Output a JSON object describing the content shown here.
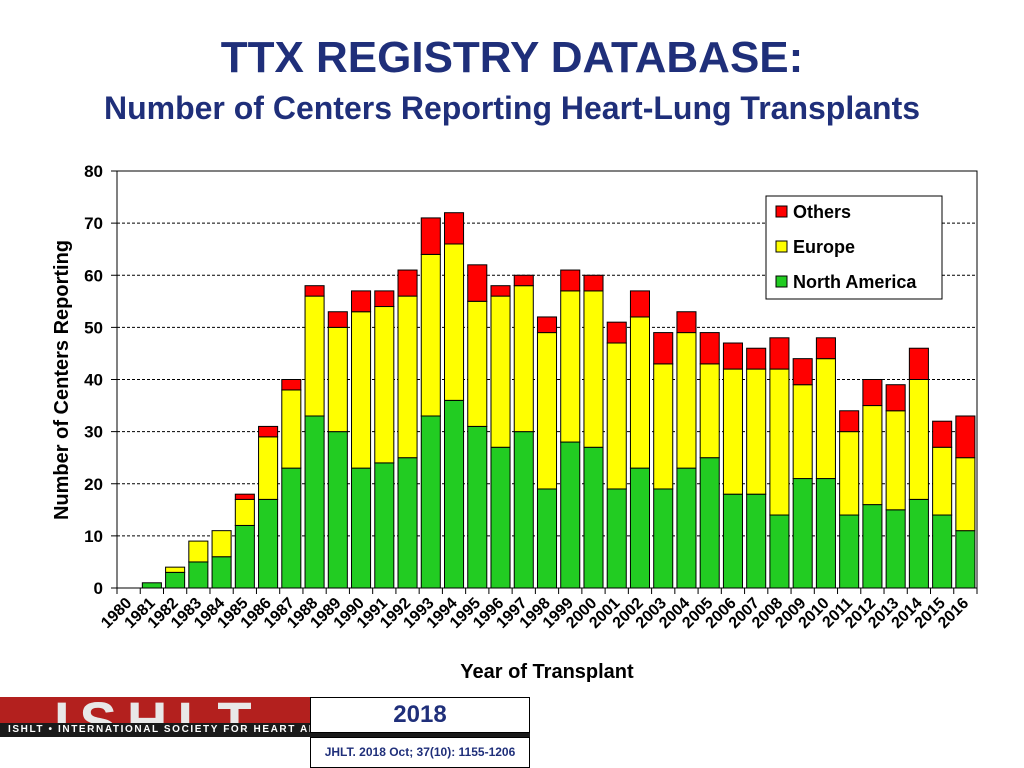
{
  "header": {
    "title": "TTX REGISTRY DATABASE:",
    "subtitle": "Number of Centers Reporting Heart-Lung Transplants"
  },
  "colors": {
    "north_america": "#22cc22",
    "europe": "#ffff00",
    "others": "#ff0000",
    "title": "#1f2f7a",
    "logo_red": "#b3201e"
  },
  "chart_data": {
    "type": "bar",
    "stacked": true,
    "title": "",
    "xlabel": "Year of Transplant",
    "ylabel": "Number of Centers Reporting",
    "ylim": [
      0,
      80
    ],
    "yticks": [
      0,
      10,
      20,
      30,
      40,
      50,
      60,
      70,
      80
    ],
    "grid": true,
    "legend_position": "top-right",
    "legend_order": [
      "Others",
      "Europe",
      "North America"
    ],
    "categories": [
      "1980",
      "1981",
      "1982",
      "1983",
      "1984",
      "1985",
      "1986",
      "1987",
      "1988",
      "1989",
      "1990",
      "1991",
      "1992",
      "1993",
      "1994",
      "1995",
      "1996",
      "1997",
      "1998",
      "1999",
      "2000",
      "2001",
      "2002",
      "2003",
      "2004",
      "2005",
      "2006",
      "2007",
      "2008",
      "2009",
      "2010",
      "2011",
      "2012",
      "2013",
      "2014",
      "2015",
      "2016"
    ],
    "series": [
      {
        "name": "North America",
        "color": "#22cc22",
        "values": [
          0,
          1,
          3,
          5,
          6,
          12,
          17,
          23,
          33,
          30,
          23,
          24,
          25,
          33,
          36,
          31,
          27,
          30,
          19,
          28,
          27,
          19,
          23,
          19,
          23,
          25,
          18,
          18,
          14,
          21,
          21,
          14,
          16,
          15,
          17,
          14,
          11
        ]
      },
      {
        "name": "Europe",
        "color": "#ffff00",
        "values": [
          0,
          0,
          1,
          4,
          5,
          5,
          12,
          15,
          23,
          20,
          30,
          30,
          31,
          31,
          30,
          24,
          29,
          28,
          30,
          29,
          30,
          28,
          29,
          24,
          26,
          18,
          24,
          24,
          28,
          18,
          23,
          16,
          19,
          19,
          23,
          13,
          14
        ]
      },
      {
        "name": "Others",
        "color": "#ff0000",
        "values": [
          0,
          0,
          0,
          0,
          0,
          1,
          2,
          2,
          2,
          3,
          4,
          3,
          5,
          7,
          6,
          7,
          2,
          2,
          3,
          4,
          3,
          4,
          5,
          6,
          4,
          6,
          5,
          4,
          6,
          5,
          4,
          4,
          5,
          5,
          6,
          5,
          8
        ]
      }
    ]
  },
  "footer": {
    "logo_text": "ISHLT",
    "logo_tagline": "ISHLT • INTERNATIONAL SOCIETY FOR HEART AND LUNG TRANSPLANTATION",
    "year": "2018",
    "citation": "JHLT. 2018 Oct; 37(10): 1155-1206"
  }
}
